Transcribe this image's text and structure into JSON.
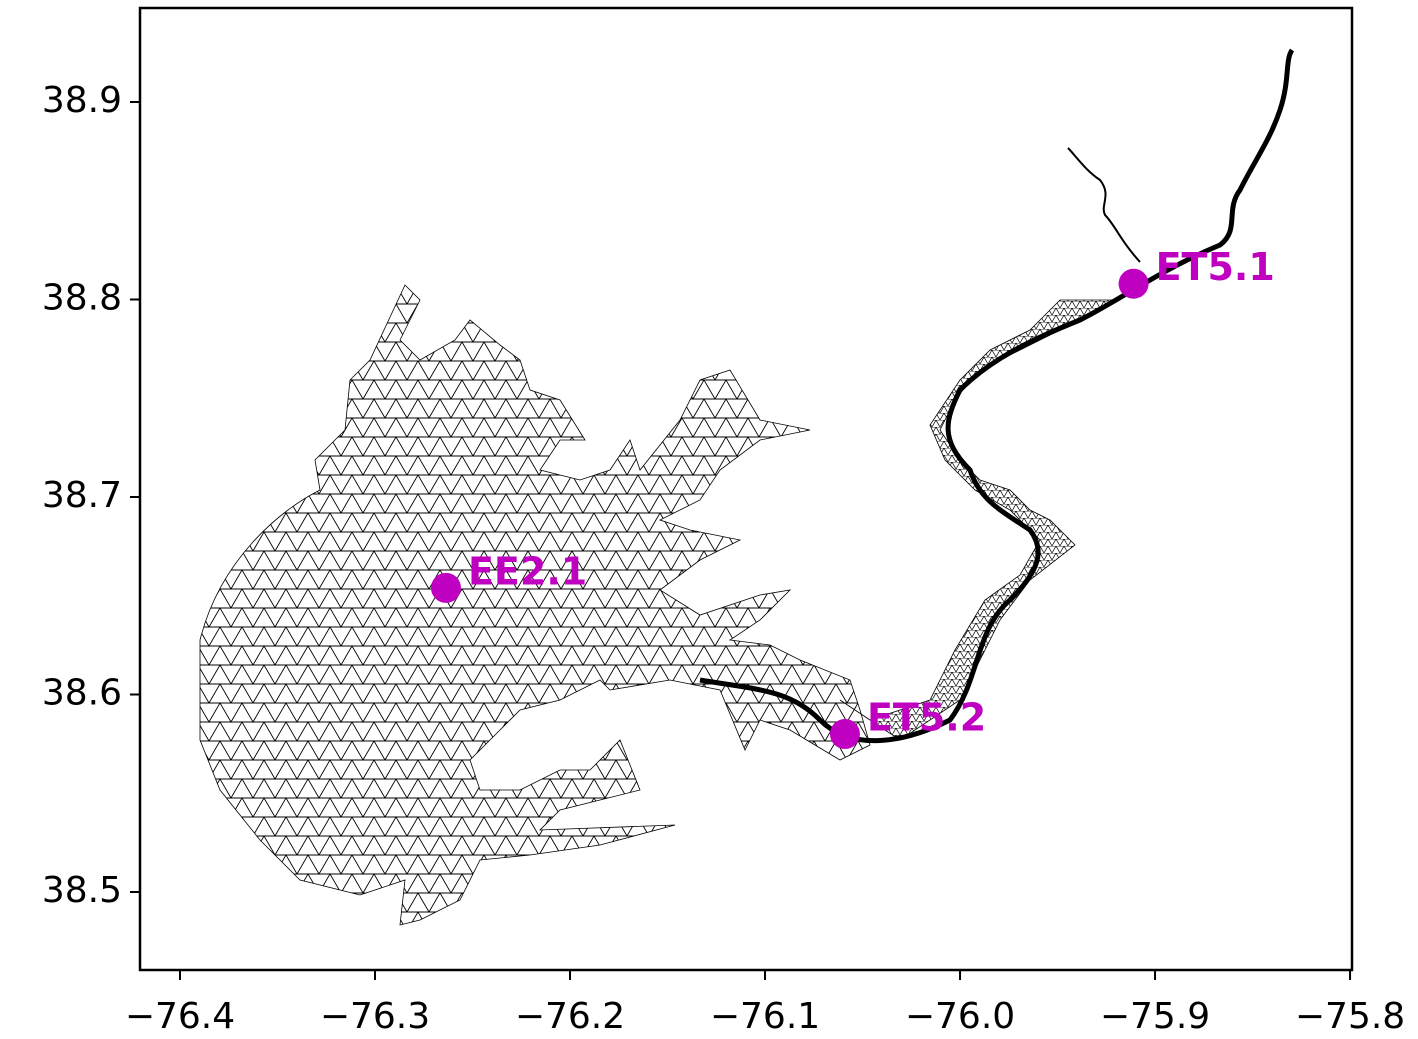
{
  "chart_data": {
    "type": "scatter",
    "x": [
      -76.2636,
      -76.059,
      -75.911
    ],
    "values": [
      38.654,
      38.58,
      38.808
    ],
    "point_labels": [
      "EE2.1",
      "ET5.2",
      "ET5.1"
    ],
    "color": "#c000c0",
    "xlim": [
      -76.4205,
      -75.799
    ],
    "ylim": [
      38.4605,
      38.9476
    ],
    "xticks": [
      {
        "value": -76.4,
        "label": "−76.4"
      },
      {
        "value": -76.3,
        "label": "−76.3"
      },
      {
        "value": -76.2,
        "label": "−76.2"
      },
      {
        "value": -76.1,
        "label": "−76.1"
      },
      {
        "value": -76.0,
        "label": "−76.0"
      },
      {
        "value": -75.9,
        "label": "−75.9"
      },
      {
        "value": -75.8,
        "label": "−75.8"
      }
    ],
    "yticks": [
      38.5,
      38.6,
      38.7,
      38.8,
      38.9
    ]
  }
}
